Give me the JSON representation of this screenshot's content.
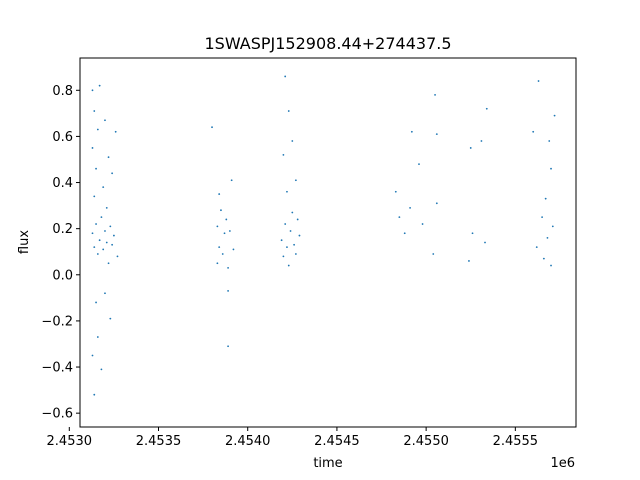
{
  "chart_data": {
    "type": "scatter",
    "title": "1SWASPJ152908.44+274437.5",
    "xlabel": "time",
    "ylabel": "flux",
    "x_offset_label": "1e6",
    "xlim": [
      2.45306,
      2.45584
    ],
    "ylim": [
      -0.66,
      0.94
    ],
    "x_ticks": [
      2.453,
      2.4535,
      2.454,
      2.4545,
      2.455,
      2.4555
    ],
    "x_tick_labels": [
      "2.4530",
      "2.4535",
      "2.4540",
      "2.4545",
      "2.4550",
      "2.4555"
    ],
    "y_ticks": [
      -0.6,
      -0.4,
      -0.2,
      0.0,
      0.2,
      0.4,
      0.6,
      0.8
    ],
    "y_tick_labels": [
      "−0.6",
      "−0.4",
      "−0.2",
      "0.0",
      "0.2",
      "0.4",
      "0.6",
      "0.8"
    ],
    "grid": false,
    "marker_color": "#1f77b4",
    "series": [
      {
        "values": [
          [
            2.45313,
            0.18
          ],
          [
            2.45313,
            0.55
          ],
          [
            2.45313,
            -0.35
          ],
          [
            2.45313,
            0.8
          ],
          [
            2.45314,
            0.12
          ],
          [
            2.45314,
            0.34
          ],
          [
            2.45314,
            -0.52
          ],
          [
            2.45314,
            0.71
          ],
          [
            2.45315,
            0.22
          ],
          [
            2.45315,
            -0.12
          ],
          [
            2.45315,
            0.46
          ],
          [
            2.45316,
            0.09
          ],
          [
            2.45316,
            0.63
          ],
          [
            2.45316,
            -0.27
          ],
          [
            2.45317,
            0.15
          ],
          [
            2.45317,
            0.82
          ],
          [
            2.45318,
            0.25
          ],
          [
            2.45318,
            -0.41
          ],
          [
            2.45319,
            0.11
          ],
          [
            2.45319,
            0.38
          ],
          [
            2.4532,
            0.19
          ],
          [
            2.4532,
            -0.08
          ],
          [
            2.4532,
            0.67
          ],
          [
            2.45321,
            0.14
          ],
          [
            2.45321,
            0.29
          ],
          [
            2.45322,
            0.05
          ],
          [
            2.45322,
            0.51
          ],
          [
            2.45323,
            0.21
          ],
          [
            2.45323,
            -0.19
          ],
          [
            2.45324,
            0.13
          ],
          [
            2.45324,
            0.44
          ],
          [
            2.45325,
            0.17
          ],
          [
            2.45326,
            0.62
          ],
          [
            2.45327,
            0.08
          ],
          [
            2.45383,
            0.05
          ],
          [
            2.45383,
            0.21
          ],
          [
            2.45384,
            0.35
          ],
          [
            2.45384,
            0.12
          ],
          [
            2.45385,
            0.28
          ],
          [
            2.45386,
            0.09
          ],
          [
            2.45387,
            0.18
          ],
          [
            2.45388,
            0.24
          ],
          [
            2.45389,
            0.03
          ],
          [
            2.4539,
            0.19
          ],
          [
            2.45391,
            0.41
          ],
          [
            2.45392,
            0.11
          ],
          [
            2.45389,
            -0.07
          ],
          [
            2.45389,
            -0.31
          ],
          [
            2.4538,
            0.64
          ],
          [
            2.45419,
            0.15
          ],
          [
            2.4542,
            0.08
          ],
          [
            2.4542,
            0.52
          ],
          [
            2.45421,
            0.22
          ],
          [
            2.45421,
            0.86
          ],
          [
            2.45422,
            0.12
          ],
          [
            2.45422,
            0.36
          ],
          [
            2.45423,
            0.04
          ],
          [
            2.45423,
            0.71
          ],
          [
            2.45424,
            0.19
          ],
          [
            2.45425,
            0.27
          ],
          [
            2.45425,
            0.58
          ],
          [
            2.45426,
            0.13
          ],
          [
            2.45427,
            0.09
          ],
          [
            2.45427,
            0.41
          ],
          [
            2.45428,
            0.24
          ],
          [
            2.45429,
            0.17
          ],
          [
            2.45483,
            0.36
          ],
          [
            2.45485,
            0.25
          ],
          [
            2.45488,
            0.18
          ],
          [
            2.45491,
            0.29
          ],
          [
            2.45492,
            0.62
          ],
          [
            2.45496,
            0.48
          ],
          [
            2.45498,
            0.22
          ],
          [
            2.45504,
            0.09
          ],
          [
            2.45505,
            0.78
          ],
          [
            2.45506,
            0.31
          ],
          [
            2.45506,
            0.61
          ],
          [
            2.45524,
            0.06
          ],
          [
            2.45525,
            0.55
          ],
          [
            2.45526,
            0.18
          ],
          [
            2.45531,
            0.58
          ],
          [
            2.45533,
            0.14
          ],
          [
            2.45534,
            0.72
          ],
          [
            2.4556,
            0.62
          ],
          [
            2.45562,
            0.12
          ],
          [
            2.45563,
            0.84
          ],
          [
            2.45565,
            0.25
          ],
          [
            2.45566,
            0.07
          ],
          [
            2.45567,
            0.33
          ],
          [
            2.45568,
            0.16
          ],
          [
            2.45569,
            0.58
          ],
          [
            2.4557,
            0.04
          ],
          [
            2.4557,
            0.46
          ],
          [
            2.45571,
            0.21
          ],
          [
            2.45572,
            0.69
          ]
        ]
      }
    ]
  }
}
